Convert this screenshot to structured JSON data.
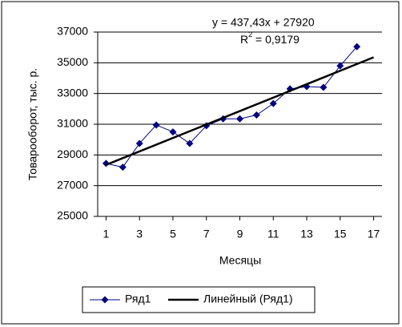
{
  "chart_data": {
    "type": "line",
    "annotations": {
      "equation": "y = 437,43x + 27920",
      "r2": {
        "base": "R",
        "sup": "2",
        "rest": " = 0,9179"
      }
    },
    "y_label": "Товарооборот, тыс. р.",
    "x_label": "Месяцы",
    "series": [
      {
        "name": "Ряд1",
        "color": "#000080",
        "marker": "diamond",
        "x": [
          1,
          2,
          3,
          4,
          5,
          6,
          7,
          8,
          9,
          10,
          11,
          12,
          13,
          14,
          15,
          16
        ],
        "values": [
          28450,
          28200,
          29750,
          30950,
          30500,
          29750,
          30900,
          31350,
          31350,
          31600,
          32350,
          33300,
          33450,
          33400,
          34800,
          36050
        ]
      },
      {
        "name": "Линейный (Ряд1)",
        "color": "#000000",
        "x": [
          1,
          17
        ],
        "values": [
          28357,
          35356
        ]
      }
    ],
    "xlim": [
      0.5,
      17.5
    ],
    "xticks": [
      1,
      3,
      5,
      7,
      9,
      11,
      13,
      15,
      17
    ],
    "ylim": [
      25000,
      37000
    ],
    "yticks": [
      25000,
      27000,
      29000,
      31000,
      33000,
      35000,
      37000
    ],
    "grid": true
  }
}
